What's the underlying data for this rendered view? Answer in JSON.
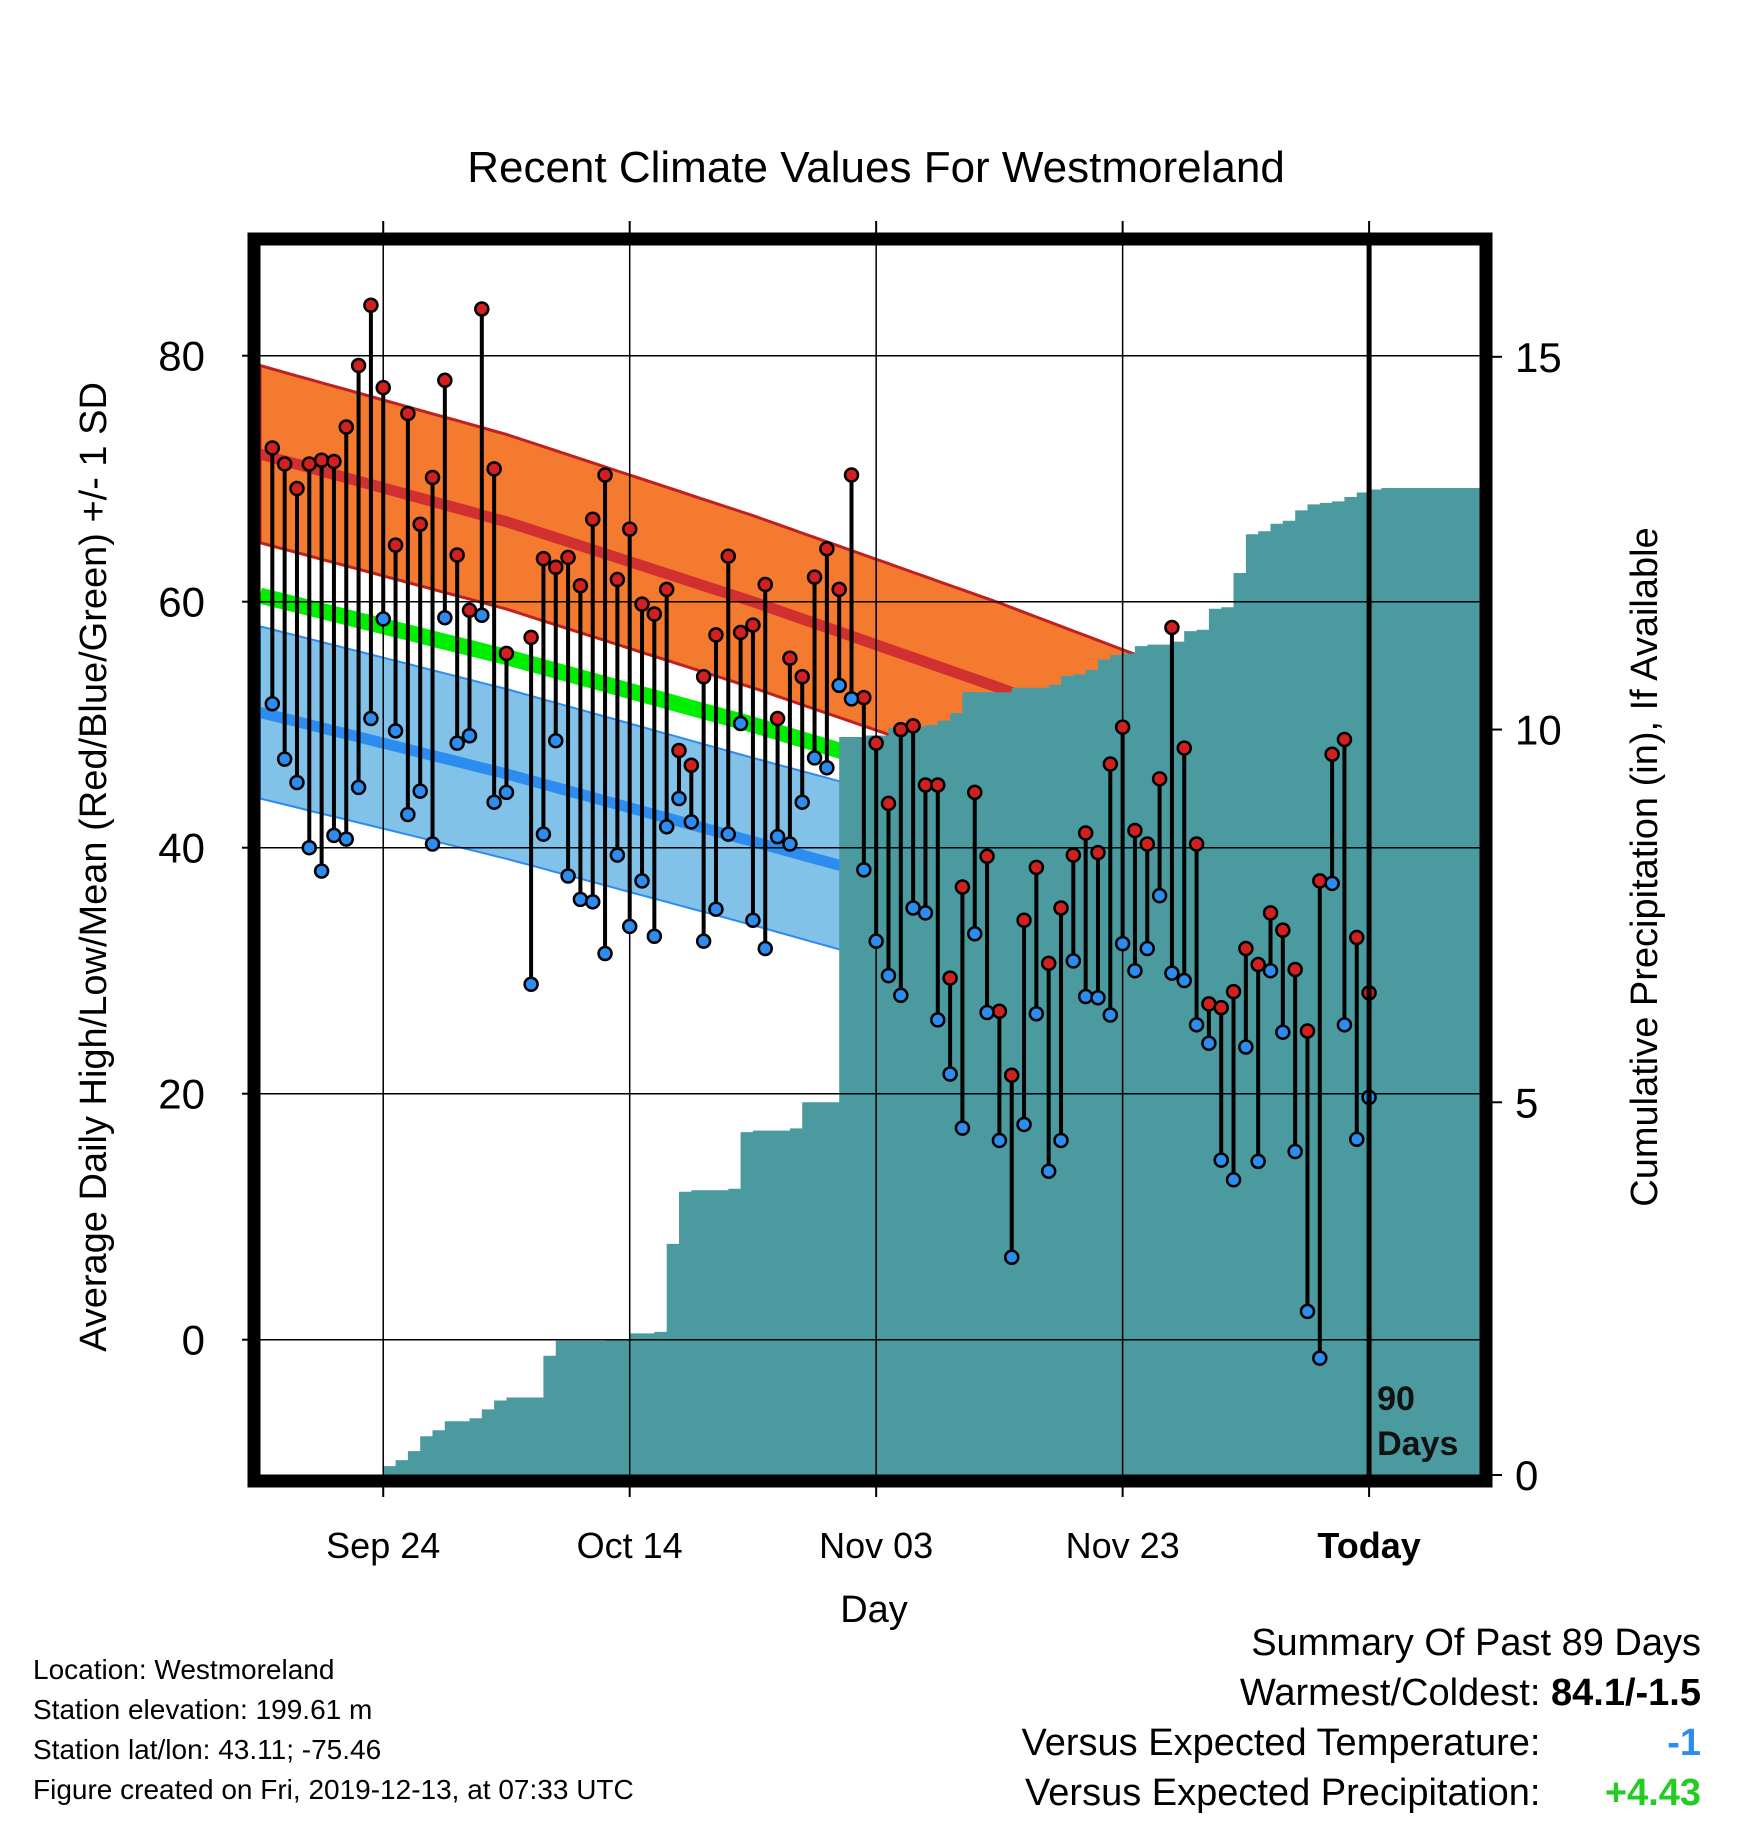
{
  "chart_data": {
    "type": "line",
    "title": "Recent Climate Values For Westmoreland",
    "xlabel": "Day",
    "ylabel": "Average Daily High/Low/Mean (Red/Blue/Green) +/- 1 SD",
    "y2label": "Cumulative Precipitation (in), If Available",
    "x_range_days": [
      -90,
      9
    ],
    "ylim": [
      -11,
      89
    ],
    "y2lim": [
      0,
      16.5
    ],
    "yticks": [
      0,
      20,
      40,
      60,
      80
    ],
    "yticklabels": [
      "0",
      "20",
      "40",
      "60",
      "80"
    ],
    "y2ticks": [
      0,
      5,
      10,
      15
    ],
    "y2ticklabels": [
      "0",
      "5",
      "10",
      "15"
    ],
    "xticks": [
      -80,
      -60,
      -40,
      -20,
      0
    ],
    "xticklabels": [
      "Sep 24",
      "Oct 14",
      "Nov 03",
      "Nov 23",
      "Today"
    ],
    "grid": true,
    "today_marker_label": [
      "90",
      "Days"
    ],
    "colors": {
      "high_sd_band": "#F47A30",
      "high_mean": "#D03030",
      "low_sd_band": "#82C2E8",
      "low_mean": "#2D8CF0",
      "mean_temp": "#00EE00",
      "overlap": "#981A1A",
      "precip": "#4A9AA0",
      "high_dot": "#D02020",
      "low_dot": "#2D8CF0"
    },
    "normals": {
      "day": [
        -90,
        -70,
        -50,
        -30,
        -10,
        9
      ],
      "high_mean": [
        72.0,
        66.5,
        60.0,
        53.0,
        45.5,
        38.5
      ],
      "high_sd": [
        7.2,
        7.1,
        7.0,
        6.9,
        6.8,
        5.3
      ],
      "low_mean": [
        51.0,
        46.0,
        40.5,
        35.0,
        28.0,
        21.0
      ],
      "low_sd": [
        7.0,
        6.9,
        6.8,
        6.9,
        7.0,
        7.0
      ],
      "mean_temp": [
        60.5,
        55.5,
        50.0,
        44.0,
        37.0,
        29.5
      ]
    },
    "series": [
      {
        "name": "High",
        "values": [
          72.5,
          71.2,
          69.2,
          71.2,
          71.5,
          71.4,
          74.2,
          79.2,
          84.1,
          77.4,
          64.6,
          75.3,
          66.3,
          70.1,
          78.0,
          63.8,
          59.3,
          83.8,
          70.8,
          55.8,
          null,
          57.1,
          63.5,
          62.8,
          63.6,
          61.3,
          66.7,
          70.3,
          61.8,
          65.9,
          59.8,
          59.0,
          61.0,
          47.9,
          46.7,
          53.9,
          57.3,
          63.7,
          57.5,
          58.1,
          61.4,
          50.5,
          55.4,
          53.9,
          62.0,
          64.3,
          61.0,
          70.3,
          52.2,
          48.5,
          43.6,
          49.6,
          49.9,
          45.1,
          45.1,
          29.4,
          36.8,
          44.5,
          39.3,
          26.7,
          21.5,
          34.1,
          38.4,
          30.6,
          35.1,
          39.4,
          41.2,
          39.6,
          46.8,
          49.8,
          41.4,
          40.3,
          45.6,
          57.9,
          48.1,
          40.3,
          27.3,
          27.0,
          28.3,
          31.8,
          30.5,
          34.7,
          33.3,
          30.1,
          25.1,
          37.3,
          47.6,
          48.8,
          32.7,
          28.2
        ],
        "color": "#D02020"
      },
      {
        "name": "Low",
        "values": [
          51.7,
          47.2,
          45.3,
          40.0,
          38.1,
          41.0,
          40.7,
          44.9,
          50.5,
          58.6,
          49.5,
          42.7,
          44.6,
          40.3,
          58.7,
          48.5,
          49.1,
          58.9,
          43.7,
          44.5,
          null,
          28.9,
          41.1,
          48.7,
          37.7,
          35.8,
          35.6,
          31.4,
          39.4,
          33.6,
          37.3,
          32.8,
          41.7,
          44.0,
          42.1,
          32.4,
          35.0,
          41.1,
          50.1,
          34.1,
          31.8,
          40.9,
          40.3,
          43.7,
          47.3,
          46.5,
          53.2,
          52.1,
          38.2,
          32.4,
          29.6,
          28.0,
          35.1,
          34.7,
          26.0,
          21.6,
          17.2,
          33.0,
          26.6,
          16.2,
          6.7,
          17.5,
          26.5,
          13.7,
          16.2,
          30.8,
          27.9,
          27.8,
          26.4,
          32.2,
          30.0,
          31.8,
          36.1,
          29.8,
          29.2,
          25.6,
          24.1,
          14.6,
          13.0,
          23.8,
          14.5,
          30.0,
          25.0,
          15.3,
          2.3,
          -1.5,
          37.1,
          25.6,
          16.3,
          19.7
        ],
        "color": "#2D8CF0"
      },
      {
        "name": "Cumulative Precipitation",
        "values": [
          0,
          0,
          0,
          0,
          0,
          0,
          0,
          0,
          0,
          0,
          0.12,
          0.2,
          0.32,
          0.52,
          0.6,
          0.72,
          0.72,
          0.76,
          0.88,
          1.0,
          1.04,
          1.04,
          1.04,
          1.6,
          1.8,
          1.8,
          1.8,
          1.8,
          1.82,
          1.82,
          1.9,
          1.9,
          1.92,
          3.1,
          3.8,
          3.82,
          3.82,
          3.82,
          3.84,
          4.6,
          4.62,
          4.62,
          4.62,
          4.65,
          5.0,
          5.0,
          5.0,
          9.9,
          9.9,
          9.92,
          9.92,
          10.02,
          10.04,
          10.04,
          10.06,
          10.12,
          10.22,
          10.5,
          10.5,
          10.5,
          10.5,
          10.56,
          10.56,
          10.56,
          10.6,
          10.72,
          10.74,
          10.8,
          10.94,
          11.0,
          11.02,
          11.12,
          11.14,
          11.14,
          11.18,
          11.32,
          11.34,
          11.62,
          11.64,
          12.1,
          12.62,
          12.66,
          12.76,
          12.8,
          12.94,
          13.02,
          13.04,
          13.06,
          13.12,
          13.18,
          13.22,
          13.24,
          13.24
        ],
        "color": "#4A9AA0"
      }
    ]
  },
  "info": {
    "location": "Location: Westmoreland",
    "elevation": "Station elevation: 199.61 m",
    "latlon": "Station lat/lon: 43.11; -75.46",
    "created": "Figure created on Fri, 2019-12-13, at 07:33 UTC"
  },
  "summary": {
    "heading": "Summary Of Past 89 Days",
    "warmest_label": "Warmest/Coldest:",
    "warmest_value": "84.1/-1.5",
    "temp_label": "Versus Expected Temperature:",
    "temp_value": "-1",
    "temp_color": "#2D8CF0",
    "precip_label": "Versus Expected Precipitation:",
    "precip_value": "+4.43",
    "precip_color": "#22CC22"
  }
}
